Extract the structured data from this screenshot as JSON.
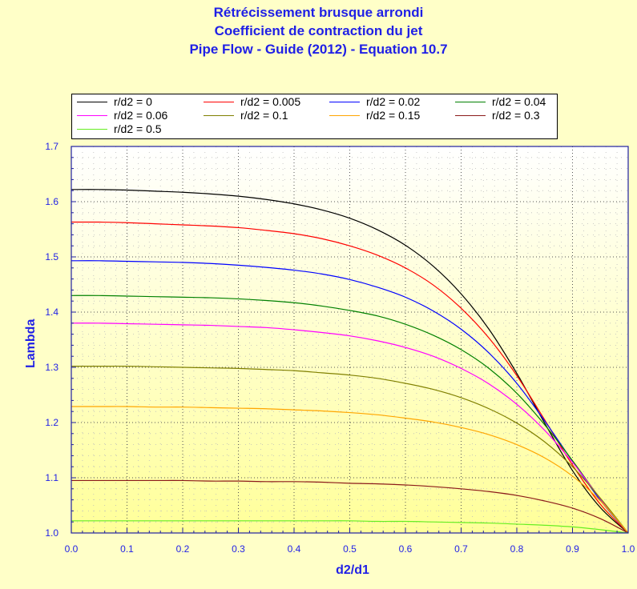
{
  "chart_data": {
    "type": "line",
    "title": "Rétrécissement brusque arrondi",
    "subtitle": "Coefficient de contraction du jet",
    "source_line": "Pipe Flow - Guide (2012) - Equation 10.7",
    "xlabel": "d2/d1",
    "ylabel": "Lambda",
    "xlim": [
      0,
      1
    ],
    "ylim": [
      1.0,
      1.7
    ],
    "x_ticks": [
      "0.0",
      "0.1",
      "0.2",
      "0.3",
      "0.4",
      "0.5",
      "0.6",
      "0.7",
      "0.8",
      "0.9",
      "1.0"
    ],
    "y_ticks": [
      "1.0",
      "1.1",
      "1.2",
      "1.3",
      "1.4",
      "1.5",
      "1.6",
      "1.7"
    ],
    "grid": true,
    "legend_position": "top",
    "x": [
      0,
      0.05,
      0.1,
      0.15,
      0.2,
      0.25,
      0.3,
      0.35,
      0.4,
      0.45,
      0.5,
      0.55,
      0.6,
      0.65,
      0.7,
      0.75,
      0.8,
      0.85,
      0.9,
      0.95,
      1.0
    ],
    "series": [
      {
        "name": "r/d2 = 0",
        "color": "#000000",
        "values": [
          1.622,
          1.622,
          1.621,
          1.619,
          1.617,
          1.614,
          1.61,
          1.604,
          1.596,
          1.585,
          1.57,
          1.549,
          1.521,
          1.483,
          1.433,
          1.369,
          1.289,
          1.199,
          1.113,
          1.046,
          1.0
        ]
      },
      {
        "name": "r/d2 = 0.005",
        "color": "#ff0000",
        "values": [
          1.563,
          1.563,
          1.562,
          1.56,
          1.558,
          1.556,
          1.553,
          1.548,
          1.542,
          1.533,
          1.52,
          1.503,
          1.48,
          1.449,
          1.407,
          1.353,
          1.285,
          1.205,
          1.123,
          1.052,
          1.0
        ]
      },
      {
        "name": "r/d2 = 0.02",
        "color": "#0000ff",
        "values": [
          1.493,
          1.493,
          1.492,
          1.491,
          1.49,
          1.488,
          1.485,
          1.481,
          1.476,
          1.469,
          1.459,
          1.445,
          1.427,
          1.402,
          1.369,
          1.326,
          1.271,
          1.203,
          1.13,
          1.059,
          1.0
        ]
      },
      {
        "name": "r/d2 = 0.04",
        "color": "#008000",
        "values": [
          1.43,
          1.43,
          1.429,
          1.428,
          1.427,
          1.426,
          1.424,
          1.421,
          1.417,
          1.411,
          1.403,
          1.393,
          1.378,
          1.358,
          1.332,
          1.298,
          1.253,
          1.196,
          1.131,
          1.062,
          1.0
        ]
      },
      {
        "name": "r/d2 = 0.06",
        "color": "#ff00ff",
        "values": [
          1.38,
          1.38,
          1.379,
          1.378,
          1.377,
          1.376,
          1.374,
          1.372,
          1.368,
          1.363,
          1.357,
          1.348,
          1.336,
          1.32,
          1.298,
          1.27,
          1.233,
          1.186,
          1.128,
          1.062,
          1.0
        ]
      },
      {
        "name": "r/d2 = 0.1",
        "color": "#808000",
        "values": [
          1.302,
          1.302,
          1.302,
          1.301,
          1.3,
          1.299,
          1.298,
          1.296,
          1.294,
          1.29,
          1.286,
          1.28,
          1.271,
          1.26,
          1.245,
          1.225,
          1.199,
          1.165,
          1.12,
          1.063,
          1.0
        ]
      },
      {
        "name": "r/d2 = 0.15",
        "color": "#ffa500",
        "values": [
          1.229,
          1.229,
          1.229,
          1.228,
          1.228,
          1.227,
          1.226,
          1.225,
          1.223,
          1.221,
          1.218,
          1.214,
          1.208,
          1.201,
          1.191,
          1.178,
          1.16,
          1.136,
          1.103,
          1.058,
          1.0
        ]
      },
      {
        "name": "r/d2 = 0.3",
        "color": "#8b1a1a",
        "values": [
          1.095,
          1.095,
          1.095,
          1.095,
          1.095,
          1.094,
          1.094,
          1.093,
          1.093,
          1.092,
          1.09,
          1.089,
          1.087,
          1.084,
          1.08,
          1.075,
          1.068,
          1.058,
          1.045,
          1.026,
          1.0
        ]
      },
      {
        "name": "r/d2 = 0.5",
        "color": "#66ee22",
        "values": [
          1.022,
          1.022,
          1.022,
          1.022,
          1.022,
          1.022,
          1.022,
          1.022,
          1.022,
          1.022,
          1.022,
          1.021,
          1.021,
          1.02,
          1.019,
          1.018,
          1.016,
          1.014,
          1.011,
          1.006,
          1.0
        ]
      }
    ]
  },
  "colors": {
    "background": "#ffffc8",
    "plot_top": "#ffffff",
    "plot_bottom": "#ffff99",
    "accent": "#1f1fe6"
  }
}
